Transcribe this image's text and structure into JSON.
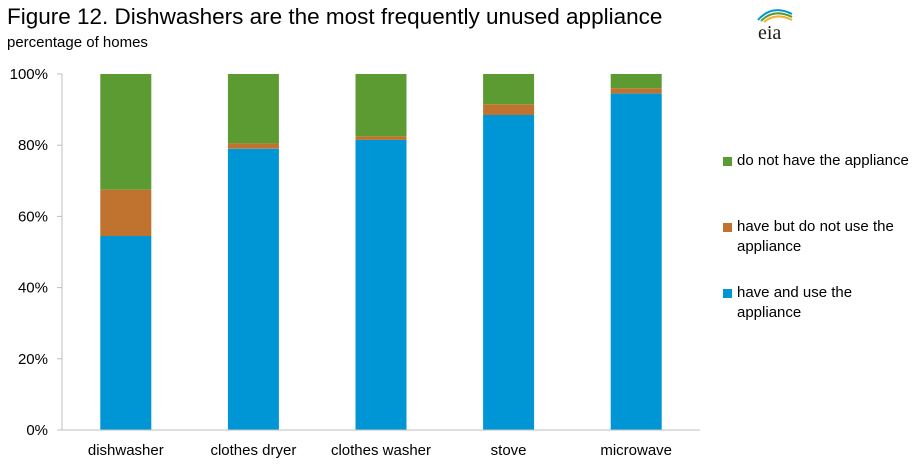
{
  "header": {
    "title": "Figure 12.  Dishwashers are the most frequently unused appliance",
    "subtitle": "percentage of homes"
  },
  "logo": {
    "text": "eia",
    "icon": "eia-logo"
  },
  "colors": {
    "use": "#0096D6",
    "unused": "#C0732E",
    "none": "#5C9B32",
    "axis": "#BFBFBF"
  },
  "chart_data": {
    "type": "bar",
    "stacked": true,
    "categories": [
      "dishwasher",
      "clothes dryer",
      "clothes washer",
      "stove",
      "microwave"
    ],
    "series": [
      {
        "name": "have and use the appliance",
        "values": [
          54.5,
          79,
          81.5,
          88.5,
          94.5
        ]
      },
      {
        "name": "have but do not use the appliance",
        "values": [
          13,
          1.5,
          1,
          3,
          1.5
        ]
      },
      {
        "name": "do not have the appliance",
        "values": [
          32.5,
          19.5,
          17.5,
          8.5,
          4
        ]
      }
    ],
    "y_ticks": [
      "0%",
      "20%",
      "40%",
      "60%",
      "80%",
      "100%"
    ],
    "ylim": [
      0,
      100
    ],
    "grid": false,
    "legend_position": "right"
  },
  "legend": {
    "items": [
      {
        "label": "do not have the appliance",
        "color": "#5C9B32"
      },
      {
        "label": "have but do not use the appliance",
        "color": "#C0732E"
      },
      {
        "label": "have and use the appliance",
        "color": "#0096D6"
      }
    ]
  }
}
